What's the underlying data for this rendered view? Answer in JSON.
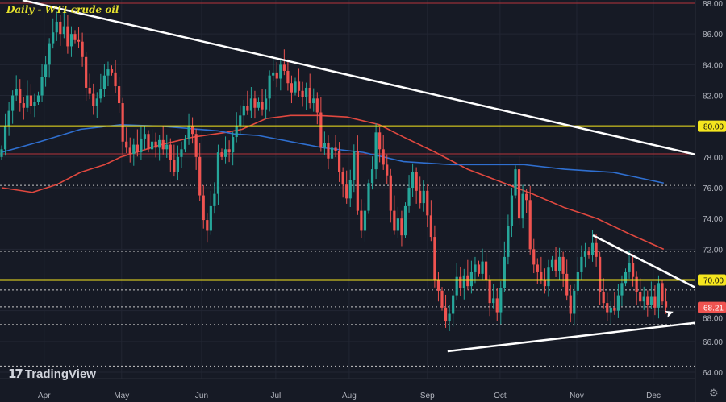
{
  "title": "Daily - WTI crude oil",
  "logo_text": "TradingView",
  "chart_data": {
    "type": "candlestick",
    "title": "Daily - WTI crude oil",
    "ylim": [
      63.5,
      88.2
    ],
    "xlim": [
      -0.5,
      197.5
    ],
    "y_ticks": [
      "64.00",
      "66.00",
      "68.00",
      "70.00",
      "72.00",
      "74.00",
      "76.00",
      "78.00",
      "80.00",
      "82.00",
      "84.00",
      "86.00",
      "88.00"
    ],
    "x_ticks": [
      {
        "label": "Apr",
        "index": 11.6
      },
      {
        "label": "May",
        "index": 32.7
      },
      {
        "label": "Jun",
        "index": 54.5
      },
      {
        "label": "Jul",
        "index": 74.7
      },
      {
        "label": "Aug",
        "index": 94.7
      },
      {
        "label": "Sep",
        "index": 116
      },
      {
        "label": "Oct",
        "index": 135.8
      },
      {
        "label": "Nov",
        "index": 156.7
      },
      {
        "label": "Dec",
        "index": 177.6
      }
    ],
    "first_open": 78.0,
    "closes": [
      78.5,
      80,
      81,
      82,
      82.4,
      81.5,
      81.2,
      82,
      81.3,
      81.6,
      82,
      83.2,
      84,
      85.4,
      86.1,
      86.8,
      86,
      86.5,
      85.2,
      86,
      85.6,
      85.5,
      84.5,
      82.5,
      82.1,
      81.3,
      81.8,
      82.4,
      83.3,
      83.7,
      83.5,
      82.6,
      81.5,
      79,
      78.6,
      78.2,
      78.8,
      78.3,
      79.2,
      79.5,
      78.5,
      79,
      78.6,
      79.1,
      78.5,
      78.8,
      77.8,
      77,
      78,
      78.5,
      79.2,
      80,
      79.5,
      78,
      75.5,
      73.9,
      73.2,
      74.8,
      75.6,
      78.3,
      78,
      78.5,
      78.3,
      79.3,
      80,
      80.7,
      81.3,
      81,
      81.8,
      81.2,
      81.6,
      81.1,
      81.8,
      83.3,
      83.5,
      83.1,
      84,
      83.6,
      82.8,
      82.2,
      82.9,
      82.3,
      81.9,
      82.5,
      81.5,
      81.8,
      80.9,
      78.6,
      78.9,
      77.9,
      78.6,
      78.4,
      77,
      76.2,
      75.3,
      76.5,
      78.4,
      74.5,
      73.2,
      74.5,
      76.3,
      77.2,
      79.6,
      78.5,
      77.5,
      76.8,
      74.5,
      73.2,
      74,
      72.9,
      74.8,
      76,
      77,
      75.8,
      75,
      75.8,
      74.2,
      72.8,
      70,
      69.3,
      68.2,
      67.3,
      67.8,
      69,
      70.2,
      69.5,
      70.3,
      69.6,
      70.5,
      71,
      70.4,
      71.2,
      70,
      68.5,
      68.8,
      67.9,
      69.5,
      71.5,
      73.5,
      75.5,
      77.2,
      74,
      75.6,
      75.2,
      72,
      71,
      70.5,
      70,
      69.6,
      70.8,
      71.3,
      70.6,
      71.5,
      70.4,
      69,
      67.8,
      69.3,
      70.5,
      71.5,
      71.9,
      71.6,
      72.4,
      71.5,
      69.2,
      68.5,
      67.9,
      68.2,
      68,
      69,
      69.8,
      70.5,
      71.1,
      70.2,
      69.2,
      68.6,
      68.9,
      68.4,
      68.9,
      68.2,
      69.8,
      68.6,
      68.21
    ],
    "moving_averages": [
      {
        "name": "red-ma",
        "color": "#e0483f",
        "points": [
          [
            0,
            76
          ],
          [
            8.4,
            75.7
          ],
          [
            15,
            76.2
          ],
          [
            21.5,
            77
          ],
          [
            28.1,
            77.5
          ],
          [
            32.5,
            78
          ],
          [
            43.5,
            78.8
          ],
          [
            52.3,
            79.3
          ],
          [
            61.1,
            79.6
          ],
          [
            65.5,
            79.8
          ],
          [
            72.1,
            80.5
          ],
          [
            78.7,
            80.7
          ],
          [
            86.4,
            80.7
          ],
          [
            94.1,
            80.6
          ],
          [
            102.9,
            80.1
          ],
          [
            109.5,
            79.3
          ],
          [
            118.2,
            78.3
          ],
          [
            127,
            77.2
          ],
          [
            135.8,
            76.4
          ],
          [
            144.6,
            75.6
          ],
          [
            153.4,
            74.7
          ],
          [
            162.2,
            74
          ],
          [
            171,
            73
          ],
          [
            180.4,
            72
          ]
        ]
      },
      {
        "name": "blue-ma",
        "color": "#2f6fd0",
        "points": [
          [
            0,
            78.3
          ],
          [
            10.5,
            79
          ],
          [
            21.5,
            79.8
          ],
          [
            32.5,
            80.1
          ],
          [
            43.5,
            80
          ],
          [
            58.9,
            79.7
          ],
          [
            63.3,
            79.5
          ],
          [
            69.9,
            79.4
          ],
          [
            87.5,
            78.6
          ],
          [
            98.5,
            78.3
          ],
          [
            109.5,
            77.7
          ],
          [
            122.6,
            77.5
          ],
          [
            142.4,
            77.5
          ],
          [
            153.4,
            77.2
          ],
          [
            166.6,
            77
          ],
          [
            180.4,
            76.3
          ]
        ]
      }
    ],
    "horizontal_levels": [
      {
        "price": 80.0,
        "style": "yellow",
        "label": "80.00"
      },
      {
        "price": 70.0,
        "style": "yellow",
        "label": "70.00"
      },
      {
        "price": 88.0,
        "style": "red-thin"
      },
      {
        "price": 78.2,
        "style": "red-thin"
      },
      {
        "price": 76.15,
        "style": "dotted"
      },
      {
        "price": 71.86,
        "style": "dotted"
      },
      {
        "price": 69.35,
        "style": "dotted"
      },
      {
        "price": 68.25,
        "style": "dotted"
      },
      {
        "price": 67.1,
        "style": "dotted"
      },
      {
        "price": 64.4,
        "style": "dotted"
      }
    ],
    "trendlines": [
      {
        "name": "major-downtrend",
        "from": [
          5.7,
          88.2
        ],
        "to": [
          197.4,
          77.7
        ]
      },
      {
        "name": "triangle-upper",
        "from": [
          161.1,
          72.9
        ],
        "to": [
          190.3,
          69.35
        ]
      },
      {
        "name": "triangle-lower",
        "from": [
          121.5,
          65.36
        ],
        "to": [
          190.3,
          67.25
        ]
      }
    ],
    "last_price": {
      "label": "68.21",
      "value": 68.21
    }
  },
  "colors": {
    "up": "#26a69a",
    "down": "#ef5350",
    "yellow": "#f5e61e",
    "bg": "#161a25",
    "text": "#b2b5be"
  }
}
